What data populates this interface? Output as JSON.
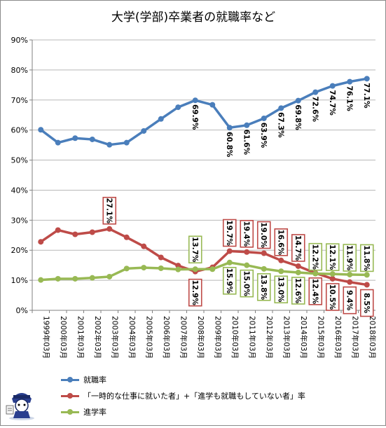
{
  "chart_data": {
    "type": "line",
    "title": "大学(学部)卒業者の就職率など",
    "categories": [
      "1999年03月",
      "2000年03月",
      "2001年03月",
      "2002年03月",
      "2003年03月",
      "2004年03月",
      "2005年03月",
      "2006年03月",
      "2007年03月",
      "2008年03月",
      "2009年03月",
      "2010年03月",
      "2011年03月",
      "2012年03月",
      "2013年03月",
      "2014年03月",
      "2015年03月",
      "2016年03月",
      "2017年03月",
      "2018年03月"
    ],
    "y_ticks": [
      "0%",
      "10%",
      "20%",
      "30%",
      "40%",
      "50%",
      "60%",
      "70%",
      "80%",
      "90%"
    ],
    "ylim": [
      0,
      90
    ],
    "grid": true,
    "legend_position": "bottom",
    "series": [
      {
        "name": "就職率",
        "color": "#4a7ebb",
        "values": [
          60.1,
          55.8,
          57.3,
          56.9,
          55.1,
          55.8,
          59.7,
          63.7,
          67.6,
          69.9,
          68.4,
          60.8,
          61.6,
          63.9,
          67.3,
          69.8,
          72.6,
          74.7,
          76.1,
          77.1
        ],
        "labels": [
          null,
          null,
          null,
          null,
          null,
          null,
          null,
          null,
          null,
          "69.9%",
          null,
          "60.8%",
          "61.6%",
          "63.9%",
          "67.3%",
          "69.8%",
          "72.6%",
          "74.7%",
          "76.1%",
          "77.1%"
        ]
      },
      {
        "name": "「一時的な仕事に就いた者」+「進学も就職もしていない者」率",
        "color": "#be4b48",
        "values": [
          22.8,
          26.7,
          25.3,
          26.0,
          27.1,
          24.3,
          21.3,
          17.6,
          14.9,
          12.9,
          14.3,
          19.7,
          19.4,
          19.0,
          16.6,
          14.7,
          12.4,
          10.5,
          9.4,
          8.5
        ],
        "labels": [
          null,
          null,
          null,
          null,
          "27.1%",
          null,
          null,
          null,
          null,
          "12.9%",
          null,
          "19.7%",
          "19.4%",
          "19.0%",
          "16.6%",
          "14.7%",
          "12.4%",
          "10.5%",
          "9.4%",
          "8.5%"
        ]
      },
      {
        "name": "進学率",
        "color": "#98b954",
        "values": [
          10.1,
          10.5,
          10.5,
          10.8,
          11.2,
          13.9,
          14.2,
          14.0,
          13.6,
          13.7,
          13.7,
          15.9,
          15.0,
          13.8,
          13.0,
          12.6,
          12.2,
          12.1,
          11.9,
          11.8
        ],
        "labels": [
          null,
          null,
          null,
          null,
          null,
          null,
          null,
          null,
          null,
          "13.7%",
          null,
          "15.9%",
          "15.0%",
          "13.8%",
          "13.0%",
          "12.6%",
          "12.2%",
          "12.1%",
          "11.9%",
          "11.8%"
        ]
      }
    ]
  }
}
